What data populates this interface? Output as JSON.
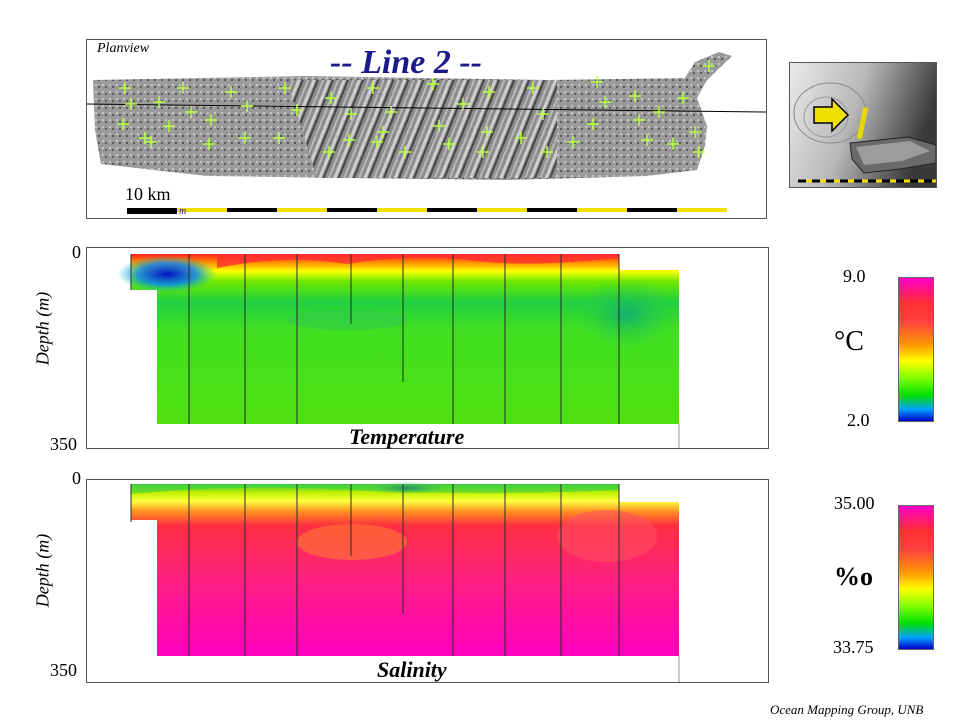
{
  "planview": {
    "label": "Planview",
    "title": "-- Line 2 --",
    "scale_label": "10 km",
    "scale_sub": "m"
  },
  "temperature": {
    "title": "Temperature",
    "ylabel": "Depth (m)",
    "depth_top": "0",
    "depth_bottom": "350",
    "scale_max": "9.0",
    "scale_min": "2.0",
    "unit": "°C"
  },
  "salinity": {
    "title": "Salinity",
    "ylabel": "Depth (m)",
    "depth_top": "0",
    "depth_bottom": "350",
    "scale_max": "35.00",
    "scale_min": "33.75",
    "unit": "%o"
  },
  "credit": "Ocean Mapping Group, UNB",
  "colors": {
    "title_blue": "#1a1a8c",
    "marker_green": "#b8ff3c",
    "scale_yellow": "#f0e000",
    "ramp": [
      "#0000c8",
      "#00a0ff",
      "#00e000",
      "#80ff00",
      "#ffff00",
      "#ffa000",
      "#ff2020",
      "#ff00c0"
    ]
  }
}
